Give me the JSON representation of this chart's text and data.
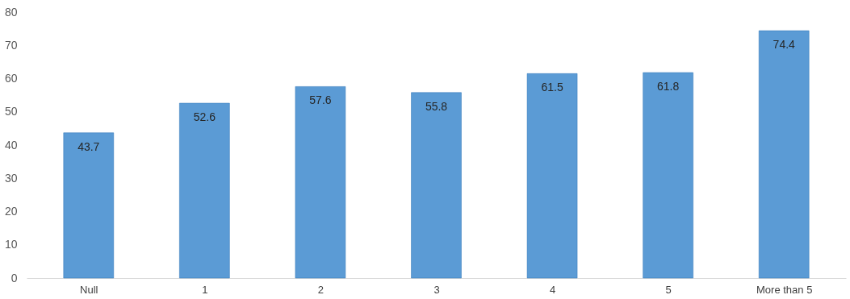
{
  "chart_data": {
    "type": "bar",
    "categories": [
      "Null",
      "1",
      "2",
      "3",
      "4",
      "5",
      "More than 5"
    ],
    "values": [
      43.7,
      52.6,
      57.6,
      55.8,
      61.5,
      61.8,
      74.4
    ],
    "color": "#5b9bd5",
    "ylim": [
      0,
      80
    ],
    "yticks": [
      0,
      10,
      20,
      30,
      40,
      50,
      60,
      70,
      80
    ],
    "grid": false,
    "data_labels": true
  }
}
